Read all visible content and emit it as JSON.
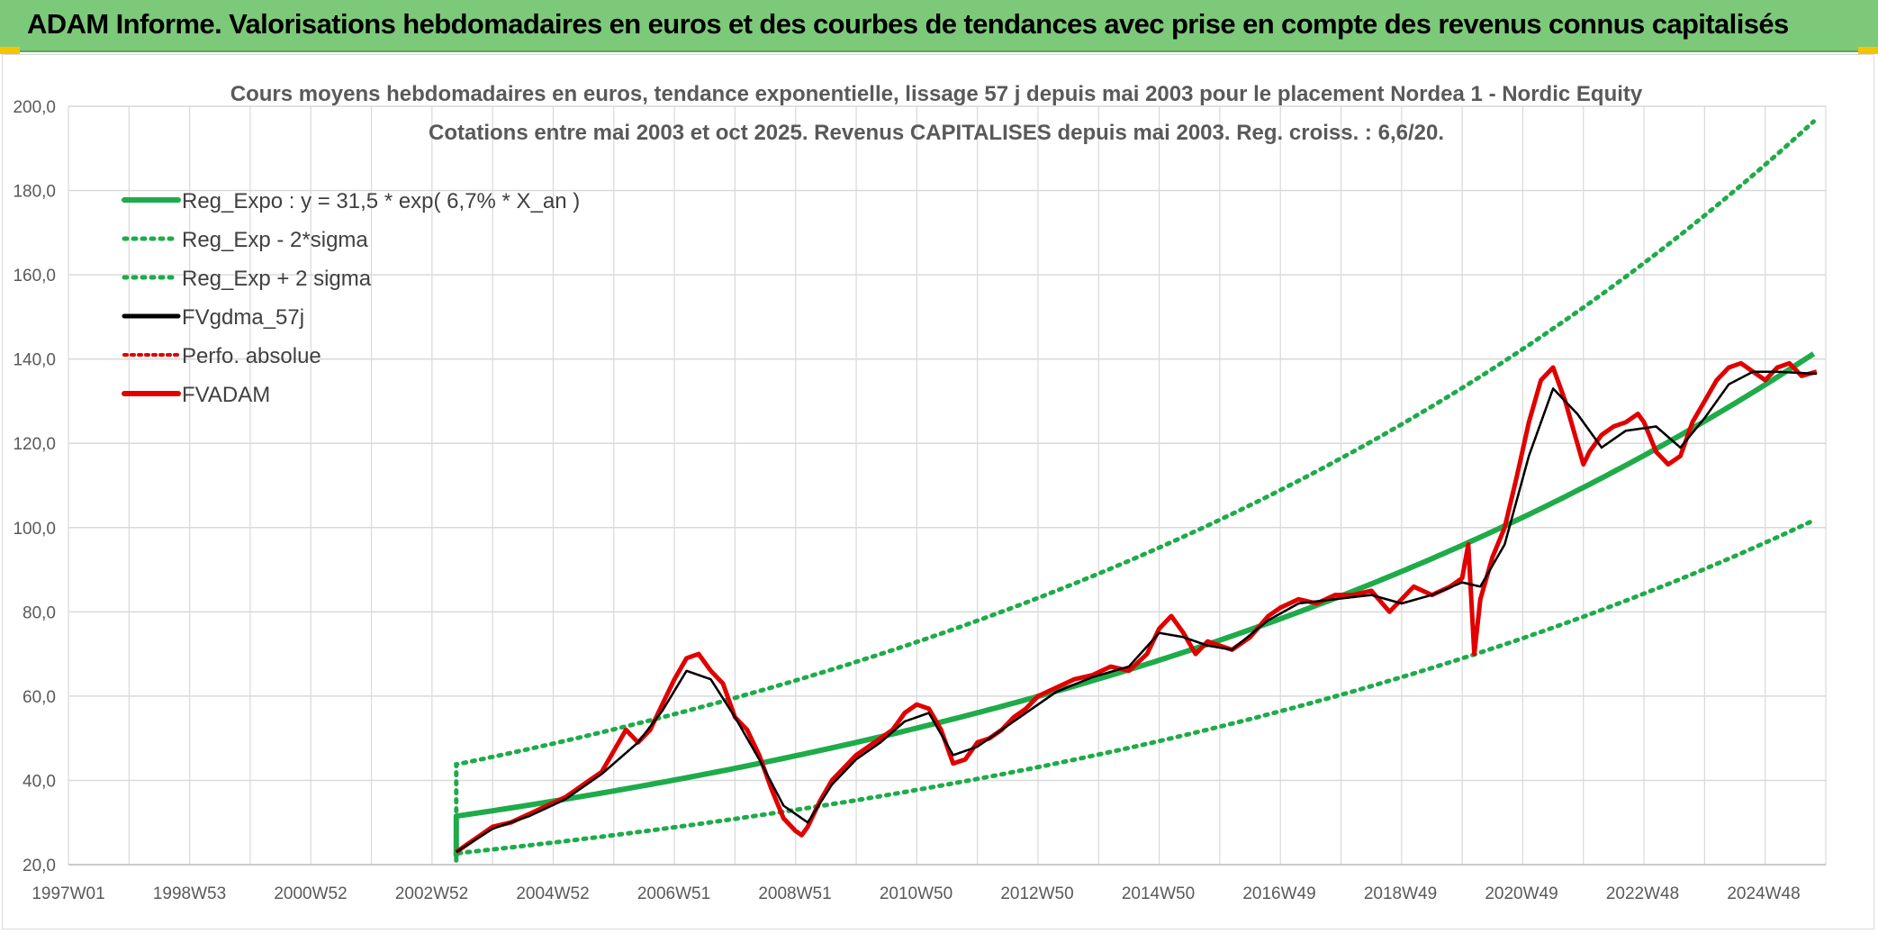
{
  "banner": {
    "title": "ADAM Informe. Valorisations hebdomadaires en euros et des courbes de tendances avec prise en compte des revenus connus capitalisés"
  },
  "colors": {
    "banner_bg": "#7dc97a",
    "regression": "#1fab4a",
    "bands": "#1fab4a",
    "smoothed": "#000000",
    "perf_absolue": "#e00000",
    "fvadam": "#e00000",
    "grid": "#d9d9d9",
    "corner_accent": "#f5c400"
  },
  "chart_data": {
    "type": "line",
    "title": [
      "Cours moyens hebdomadaires en euros, tendance exponentielle, lissage 57 j depuis mai 2003 pour le placement Nordea 1 - Nordic Equity",
      "Cotations entre mai 2003 et oct 2025. Revenus CAPITALISES depuis mai 2003. Reg. croiss. : 6,6/20."
    ],
    "xlabel": "",
    "ylabel": "",
    "x_tick_labels": [
      "1997W01",
      "1998W53",
      "2000W52",
      "2002W52",
      "2004W52",
      "2006W51",
      "2008W51",
      "2010W50",
      "2012W50",
      "2014W50",
      "2016W49",
      "2018W49",
      "2020W49",
      "2022W48",
      "2024W48"
    ],
    "xlim": [
      1997.0,
      2026.0
    ],
    "ylim": [
      20,
      200
    ],
    "y_ticks": [
      "20,0",
      "40,0",
      "60,0",
      "80,0",
      "100,0",
      "120,0",
      "140,0",
      "160,0",
      "180,0",
      "200,0"
    ],
    "grid": true,
    "legend_position": "top-left",
    "legend": [
      {
        "key": "reg",
        "label": "Reg_Expo : y = 31,5 * exp( 6,7% *  X_an )",
        "style": "solid-thick"
      },
      {
        "key": "lower",
        "label": "Reg_Exp - 2*sigma",
        "style": "dotted"
      },
      {
        "key": "upper",
        "label": "Reg_Exp + 2 sigma",
        "style": "dotted"
      },
      {
        "key": "smooth",
        "label": "FVgdma_57j",
        "style": "solid"
      },
      {
        "key": "perf",
        "label": "Perfo. absolue",
        "style": "dotted"
      },
      {
        "key": "fvadam",
        "label": "FVADAM",
        "style": "solid-thick"
      }
    ],
    "regression": {
      "start_x": 2003.4,
      "end_x": 2025.85,
      "a": 31.5,
      "rate": 0.067,
      "lower_factor": 0.72,
      "upper_factor": 1.39
    },
    "series": [
      {
        "name": "FVADAM",
        "x": [
          2003.4,
          2003.6,
          2003.8,
          2004.0,
          2004.3,
          2004.6,
          2004.9,
          2005.2,
          2005.5,
          2005.8,
          2006.0,
          2006.2,
          2006.4,
          2006.6,
          2006.8,
          2007.0,
          2007.2,
          2007.4,
          2007.6,
          2007.8,
          2008.0,
          2008.2,
          2008.4,
          2008.6,
          2008.8,
          2009.0,
          2009.1,
          2009.2,
          2009.4,
          2009.6,
          2009.8,
          2010.0,
          2010.2,
          2010.4,
          2010.6,
          2010.8,
          2011.0,
          2011.2,
          2011.4,
          2011.6,
          2011.8,
          2012.0,
          2012.2,
          2012.4,
          2012.6,
          2012.8,
          2013.0,
          2013.3,
          2013.6,
          2013.9,
          2014.2,
          2014.5,
          2014.8,
          2015.0,
          2015.2,
          2015.4,
          2015.6,
          2015.8,
          2016.0,
          2016.2,
          2016.5,
          2016.8,
          2017.0,
          2017.3,
          2017.6,
          2017.9,
          2018.2,
          2018.5,
          2018.8,
          2019.0,
          2019.2,
          2019.5,
          2019.8,
          2020.0,
          2020.1,
          2020.2,
          2020.3,
          2020.5,
          2020.7,
          2020.9,
          2021.1,
          2021.3,
          2021.5,
          2021.7,
          2021.9,
          2022.0,
          2022.1,
          2022.3,
          2022.5,
          2022.7,
          2022.9,
          2023.0,
          2023.2,
          2023.4,
          2023.6,
          2023.8,
          2024.0,
          2024.2,
          2024.4,
          2024.6,
          2024.8,
          2025.0,
          2025.2,
          2025.4,
          2025.6,
          2025.85
        ],
        "values": [
          23,
          25,
          27,
          29,
          30,
          32,
          34,
          36,
          39,
          42,
          47,
          52,
          49,
          52,
          58,
          64,
          69,
          70,
          66,
          63,
          55,
          52,
          46,
          38,
          31,
          28,
          27,
          29,
          35,
          40,
          43,
          46,
          48,
          50,
          52,
          56,
          58,
          57,
          52,
          44,
          45,
          49,
          50,
          52,
          55,
          57,
          60,
          62,
          64,
          65,
          67,
          66,
          70,
          76,
          79,
          75,
          70,
          73,
          72,
          71,
          74,
          79,
          81,
          83,
          82,
          84,
          84,
          85,
          80,
          83,
          86,
          84,
          86,
          88,
          96,
          70,
          83,
          93,
          100,
          112,
          125,
          135,
          138,
          130,
          120,
          115,
          118,
          122,
          124,
          125,
          127,
          125,
          118,
          115,
          117,
          125,
          130,
          135,
          138,
          139,
          137,
          135,
          138,
          139,
          136,
          137
        ]
      },
      {
        "name": "FVgdma_57j",
        "x": [
          2003.4,
          2004.0,
          2004.6,
          2005.2,
          2005.8,
          2006.4,
          2006.8,
          2007.2,
          2007.6,
          2008.0,
          2008.4,
          2008.8,
          2009.2,
          2009.6,
          2010.0,
          2010.4,
          2010.8,
          2011.2,
          2011.6,
          2012.0,
          2012.4,
          2012.8,
          2013.3,
          2013.9,
          2014.5,
          2015.0,
          2015.4,
          2015.8,
          2016.2,
          2016.8,
          2017.3,
          2017.9,
          2018.5,
          2019.0,
          2019.5,
          2020.0,
          2020.3,
          2020.7,
          2021.1,
          2021.5,
          2021.9,
          2022.3,
          2022.7,
          2023.2,
          2023.6,
          2024.0,
          2024.4,
          2024.8,
          2025.2,
          2025.85
        ],
        "values": [
          23,
          28.5,
          31.5,
          35.5,
          41.5,
          49,
          56.5,
          66,
          64,
          55,
          45,
          34,
          30,
          39,
          45,
          49,
          54,
          56,
          46,
          48,
          52,
          56,
          61,
          64.5,
          67,
          75,
          74,
          72,
          71,
          78,
          82,
          83,
          84,
          82,
          84,
          87,
          86,
          96,
          117,
          133,
          127,
          119,
          123,
          124,
          119,
          126,
          134,
          137,
          137,
          136.5
        ]
      },
      {
        "name": "Perfo. absolue",
        "x": [
          2003.4,
          2004.0,
          2004.6,
          2005.2,
          2005.8,
          2006.4,
          2006.8,
          2007.2,
          2007.6,
          2008.0,
          2008.4,
          2008.8,
          2009.2,
          2009.6,
          2010.0,
          2010.4,
          2010.8,
          2011.2,
          2011.6,
          2012.0,
          2012.4,
          2012.8,
          2013.3,
          2013.9,
          2014.5,
          2015.0,
          2015.4,
          2015.8,
          2016.2,
          2016.8,
          2017.3,
          2017.9,
          2018.5,
          2019.0,
          2019.5,
          2020.0,
          2020.3,
          2020.7,
          2021.1,
          2021.5,
          2021.9,
          2022.3,
          2022.7,
          2023.2,
          2023.6,
          2024.0,
          2024.4,
          2024.8,
          2025.2,
          2025.85
        ],
        "values": [
          23,
          28.5,
          31.5,
          35.5,
          41.5,
          49,
          56.5,
          66,
          64,
          55,
          45,
          34,
          30,
          39,
          45,
          49,
          54,
          56,
          46,
          48,
          52,
          56,
          61,
          64.5,
          67,
          75,
          74,
          72,
          71,
          78,
          82,
          83,
          84,
          82,
          84,
          87,
          86,
          96,
          117,
          133,
          127,
          119,
          123,
          124,
          119,
          126,
          134,
          137,
          137,
          136.5
        ]
      }
    ]
  }
}
